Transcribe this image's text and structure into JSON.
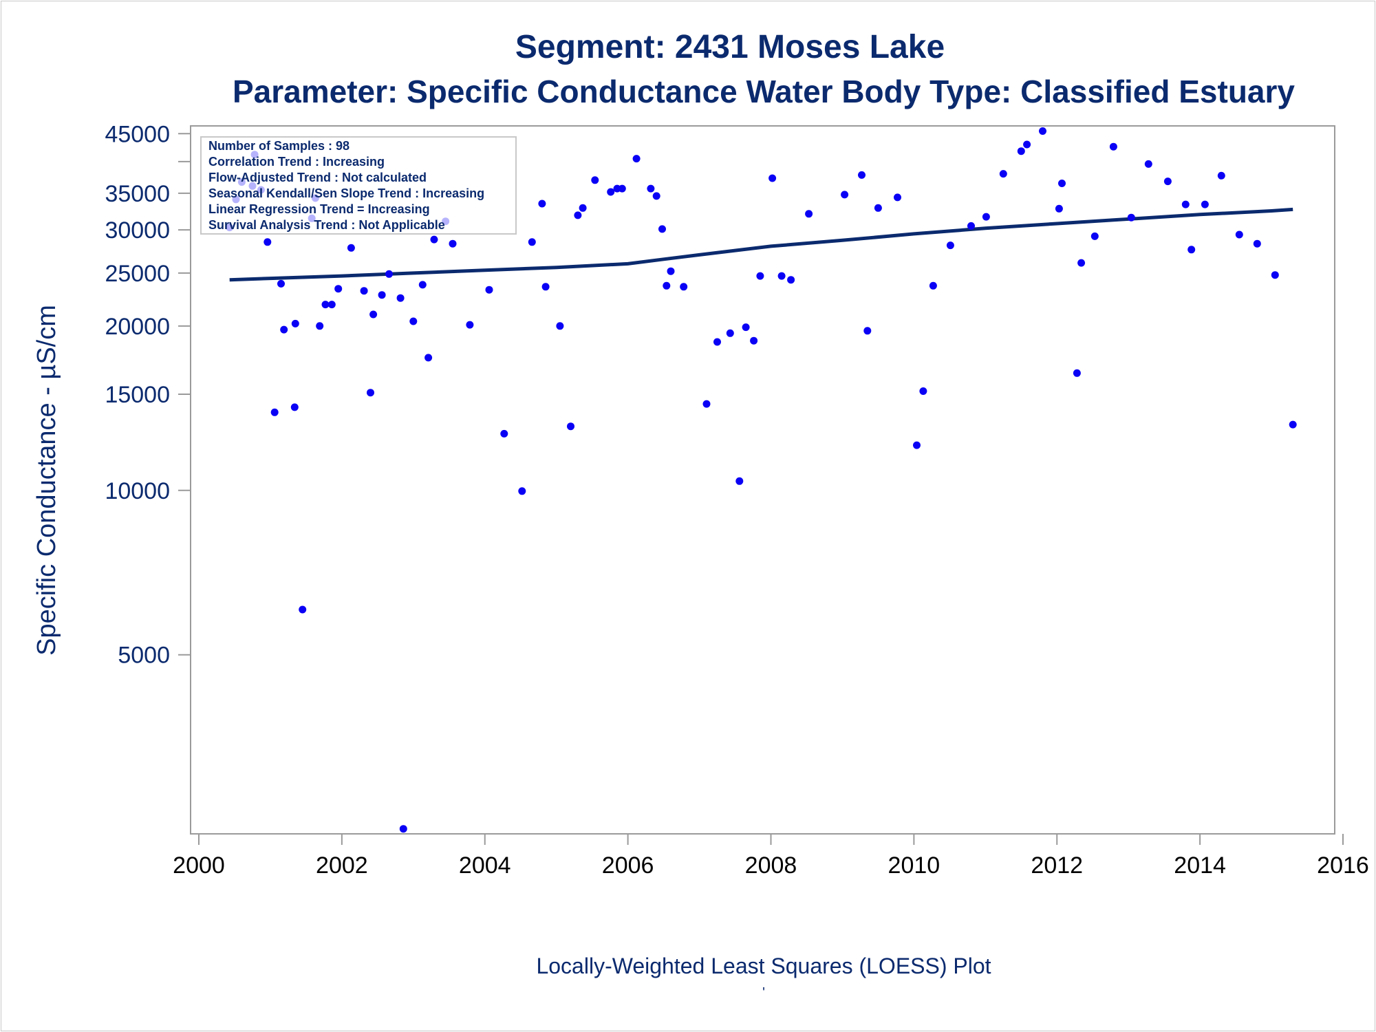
{
  "chart_data": {
    "type": "scatter",
    "title": "Segment: 2431  Moses Lake",
    "subtitle": "Parameter: Specific Conductance   Water Body Type: Classified Estuary",
    "ylabel": "Specific Conductance -  µS/cm",
    "xlabel": "",
    "footnote": "Locally-Weighted Least Squares (LOESS) Plot",
    "footnote_mark": "'",
    "y_scale": "log",
    "xlim": [
      2000,
      2016
    ],
    "ylim": [
      2350,
      46500
    ],
    "x_ticks": [
      "2000",
      "2002",
      "2004",
      "2006",
      "2008",
      "2010",
      "2012",
      "2014",
      "2016"
    ],
    "y_ticks": [
      "5000",
      "10000",
      "15000",
      "20000",
      "25000",
      "30000",
      "35000",
      "45000"
    ],
    "grid": false,
    "info_box": [
      "Number of Samples : 98",
      "Correlation Trend : Increasing",
      "Flow-Adjusted Trend : Not calculated",
      "Seasonal Kendall/Sen Slope Trend : Increasing",
      "Linear Regression Trend = Increasing",
      "Survival Analysis Trend : Not Applicable"
    ],
    "series": [
      {
        "type": "scatter",
        "color": "#0a00f5",
        "points": [
          [
            2000.43,
            30300
          ],
          [
            2000.52,
            34100
          ],
          [
            2000.6,
            36700
          ],
          [
            2000.75,
            36100
          ],
          [
            2000.78,
            41200
          ],
          [
            2000.87,
            35500
          ],
          [
            2000.96,
            28500
          ],
          [
            2001.06,
            13900
          ],
          [
            2001.15,
            23900
          ],
          [
            2001.19,
            19700
          ],
          [
            2001.34,
            14200
          ],
          [
            2001.35,
            20200
          ],
          [
            2001.45,
            6050
          ],
          [
            2001.58,
            31500
          ],
          [
            2001.63,
            34300
          ],
          [
            2001.69,
            20000
          ],
          [
            2001.77,
            21900
          ],
          [
            2001.86,
            21900
          ],
          [
            2001.95,
            23400
          ],
          [
            2002.13,
            27800
          ],
          [
            2002.31,
            23200
          ],
          [
            2002.4,
            15100
          ],
          [
            2002.44,
            21000
          ],
          [
            2002.56,
            22800
          ],
          [
            2002.66,
            24900
          ],
          [
            2002.82,
            22500
          ],
          [
            2002.86,
            2400
          ],
          [
            2003.0,
            20400
          ],
          [
            2003.13,
            23800
          ],
          [
            2003.21,
            17500
          ],
          [
            2003.29,
            28800
          ],
          [
            2003.45,
            31100
          ],
          [
            2003.55,
            28300
          ],
          [
            2003.79,
            20100
          ],
          [
            2004.06,
            23300
          ],
          [
            2004.27,
            12700
          ],
          [
            2004.52,
            9970
          ],
          [
            2004.66,
            28500
          ],
          [
            2004.8,
            33500
          ],
          [
            2004.85,
            23600
          ],
          [
            2005.05,
            20000
          ],
          [
            2005.2,
            13100
          ],
          [
            2005.3,
            31900
          ],
          [
            2005.37,
            32900
          ],
          [
            2005.54,
            37000
          ],
          [
            2005.76,
            35200
          ],
          [
            2005.85,
            35700
          ],
          [
            2005.92,
            35700
          ],
          [
            2006.12,
            40500
          ],
          [
            2006.32,
            35700
          ],
          [
            2006.4,
            34600
          ],
          [
            2006.48,
            30100
          ],
          [
            2006.54,
            23700
          ],
          [
            2006.6,
            25200
          ],
          [
            2006.78,
            23600
          ],
          [
            2007.1,
            14400
          ],
          [
            2007.25,
            18700
          ],
          [
            2007.43,
            19400
          ],
          [
            2007.56,
            10400
          ],
          [
            2007.65,
            19900
          ],
          [
            2007.76,
            18800
          ],
          [
            2007.85,
            24700
          ],
          [
            2008.02,
            37300
          ],
          [
            2008.15,
            24700
          ],
          [
            2008.28,
            24300
          ],
          [
            2008.53,
            32100
          ],
          [
            2009.03,
            34800
          ],
          [
            2009.27,
            37800
          ],
          [
            2009.35,
            19600
          ],
          [
            2009.5,
            32900
          ],
          [
            2009.77,
            34400
          ],
          [
            2010.04,
            12100
          ],
          [
            2010.13,
            15200
          ],
          [
            2010.27,
            23700
          ],
          [
            2010.51,
            28100
          ],
          [
            2010.8,
            30500
          ],
          [
            2011.01,
            31700
          ],
          [
            2011.25,
            38000
          ],
          [
            2011.5,
            41800
          ],
          [
            2011.58,
            43000
          ],
          [
            2011.8,
            45500
          ],
          [
            2012.03,
            32800
          ],
          [
            2012.07,
            36500
          ],
          [
            2012.28,
            16400
          ],
          [
            2012.34,
            26100
          ],
          [
            2012.53,
            29200
          ],
          [
            2012.79,
            42600
          ],
          [
            2013.04,
            31600
          ],
          [
            2013.28,
            39600
          ],
          [
            2013.55,
            36800
          ],
          [
            2013.8,
            33400
          ],
          [
            2013.88,
            27600
          ],
          [
            2014.07,
            33400
          ],
          [
            2014.3,
            37700
          ],
          [
            2014.55,
            29400
          ],
          [
            2014.8,
            28300
          ],
          [
            2015.05,
            24800
          ],
          [
            2015.3,
            13200
          ]
        ]
      },
      {
        "type": "line",
        "color": "#0b2a6e",
        "points": [
          [
            2000.43,
            24300
          ],
          [
            2001.0,
            24450
          ],
          [
            2002.0,
            24700
          ],
          [
            2003.0,
            25000
          ],
          [
            2004.0,
            25300
          ],
          [
            2005.0,
            25600
          ],
          [
            2006.0,
            26000
          ],
          [
            2006.5,
            26500
          ],
          [
            2007.0,
            27000
          ],
          [
            2007.5,
            27500
          ],
          [
            2008.0,
            28000
          ],
          [
            2009.0,
            28700
          ],
          [
            2010.0,
            29500
          ],
          [
            2011.0,
            30200
          ],
          [
            2012.0,
            30800
          ],
          [
            2013.0,
            31400
          ],
          [
            2014.0,
            32000
          ],
          [
            2015.0,
            32500
          ],
          [
            2015.3,
            32700
          ]
        ]
      }
    ]
  }
}
